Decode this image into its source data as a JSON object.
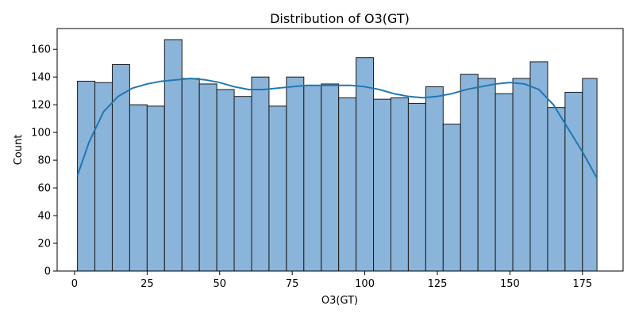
{
  "chart_data": {
    "type": "bar",
    "title": "Distribution of O3(GT)",
    "xlabel": "O3(GT)",
    "ylabel": "Count",
    "xlim": [
      -6,
      189
    ],
    "ylim": [
      0,
      175
    ],
    "bin_edges": [
      1,
      7,
      13,
      19,
      25,
      31,
      37,
      43,
      49,
      55,
      61,
      67,
      73,
      79,
      85,
      91,
      97,
      103,
      109,
      115,
      121,
      127,
      133,
      139,
      145,
      151,
      157,
      163,
      169,
      175,
      180
    ],
    "values": [
      137,
      136,
      149,
      120,
      119,
      167,
      139,
      135,
      131,
      126,
      140,
      119,
      140,
      134,
      135,
      125,
      154,
      124,
      125,
      121,
      133,
      106,
      142,
      139,
      128,
      139,
      151,
      118,
      129,
      139
    ],
    "x_ticks": [
      0,
      25,
      50,
      75,
      100,
      125,
      150,
      175
    ],
    "y_ticks": [
      0,
      20,
      40,
      60,
      80,
      100,
      120,
      140,
      160
    ],
    "kde_curve": {
      "x": [
        1,
        5,
        10,
        15,
        20,
        25,
        30,
        35,
        40,
        45,
        50,
        55,
        60,
        65,
        70,
        75,
        80,
        85,
        90,
        95,
        100,
        105,
        110,
        115,
        120,
        125,
        130,
        135,
        140,
        145,
        150,
        155,
        160,
        165,
        170,
        175,
        180
      ],
      "y": [
        69,
        93,
        115,
        126,
        132,
        135,
        137,
        138,
        139,
        138,
        136,
        133,
        131,
        131,
        132,
        133,
        134,
        134,
        134,
        134,
        133,
        131,
        128,
        126,
        125,
        126,
        128,
        131,
        133,
        135,
        136,
        135,
        131,
        120,
        103,
        86,
        67
      ]
    },
    "grid": false,
    "legend": "none",
    "colors": {
      "bar_fill": "#8ab4d9",
      "bar_edge": "#1a1a1a",
      "kde_line": "#1f77b4"
    }
  }
}
